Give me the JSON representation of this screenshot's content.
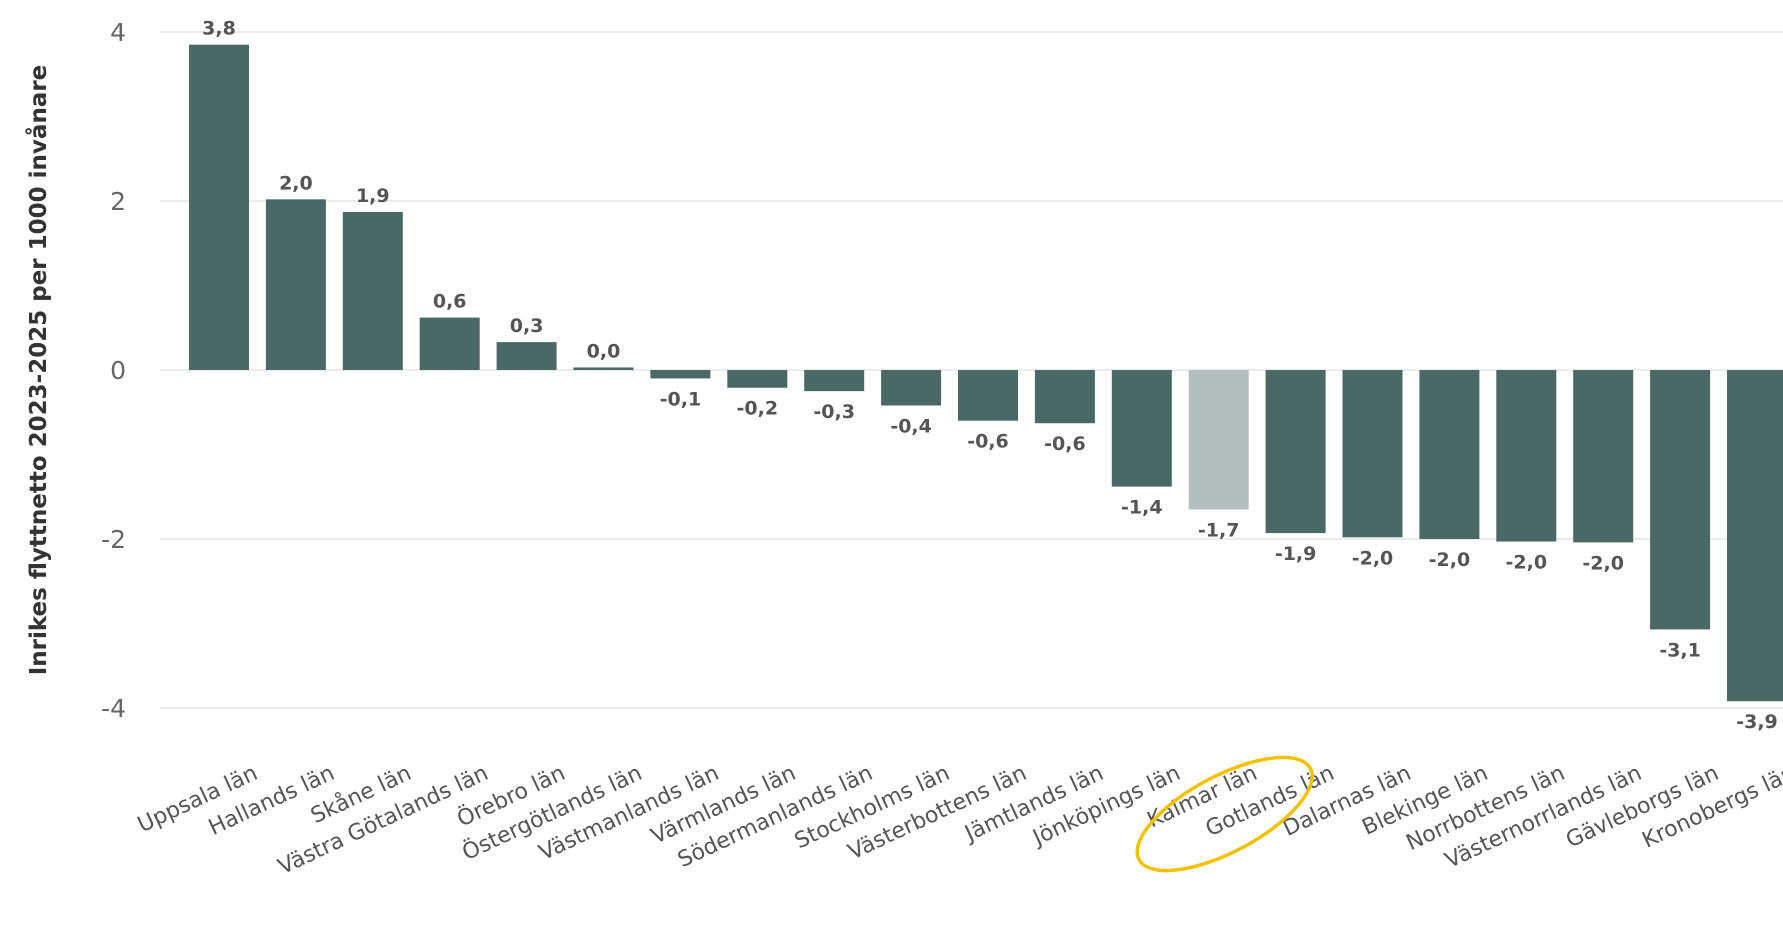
{
  "chart_data": {
    "type": "bar",
    "title": "",
    "xlabel": "",
    "ylabel": "Inrikes flyttnetto 2023-2025 per 1000 invånare",
    "ylim": [
      -4.4,
      4.2
    ],
    "yticks": [
      4,
      2,
      0,
      -2,
      -4
    ],
    "ytick_labels": [
      "4",
      "2",
      "0",
      "-2",
      "-4"
    ],
    "grid": true,
    "categories": [
      "Uppsala län",
      "Hallands län",
      "Skåne län",
      "Västra Götalands län",
      "Örebro län",
      "Östergötlands län",
      "Västmanlands län",
      "Värmlands län",
      "Södermanlands län",
      "Stockholms län",
      "Västerbottens län",
      "Jämtlands län",
      "Jönköpings län",
      "Kalmar län",
      "Gotlands län",
      "Dalarnas län",
      "Blekinge län",
      "Norrbottens län",
      "Västernorrlands län",
      "Gävleborgs län",
      "Kronobergs län"
    ],
    "values": [
      3.85,
      2.02,
      1.87,
      0.62,
      0.33,
      0.03,
      -0.1,
      -0.21,
      -0.25,
      -0.42,
      -0.6,
      -0.63,
      -1.38,
      -1.65,
      -1.93,
      -1.98,
      -2.0,
      -2.03,
      -2.04,
      -3.07,
      -3.92
    ],
    "data_labels": [
      "3,8",
      "2,0",
      "1,9",
      "0,6",
      "0,3",
      "0,0",
      "-0,1",
      "-0,2",
      "-0,3",
      "-0,4",
      "-0,6",
      "-0,6",
      "-1,4",
      "-1,7",
      "-1,9",
      "-2,0",
      "-2,0",
      "-2,0",
      "-2,0",
      "-3,1",
      "-3,9"
    ],
    "highlight_index": 13,
    "colors": {
      "bar": "#4a6965",
      "highlight": "#b3bfbe",
      "circle": "#f2c200"
    }
  }
}
